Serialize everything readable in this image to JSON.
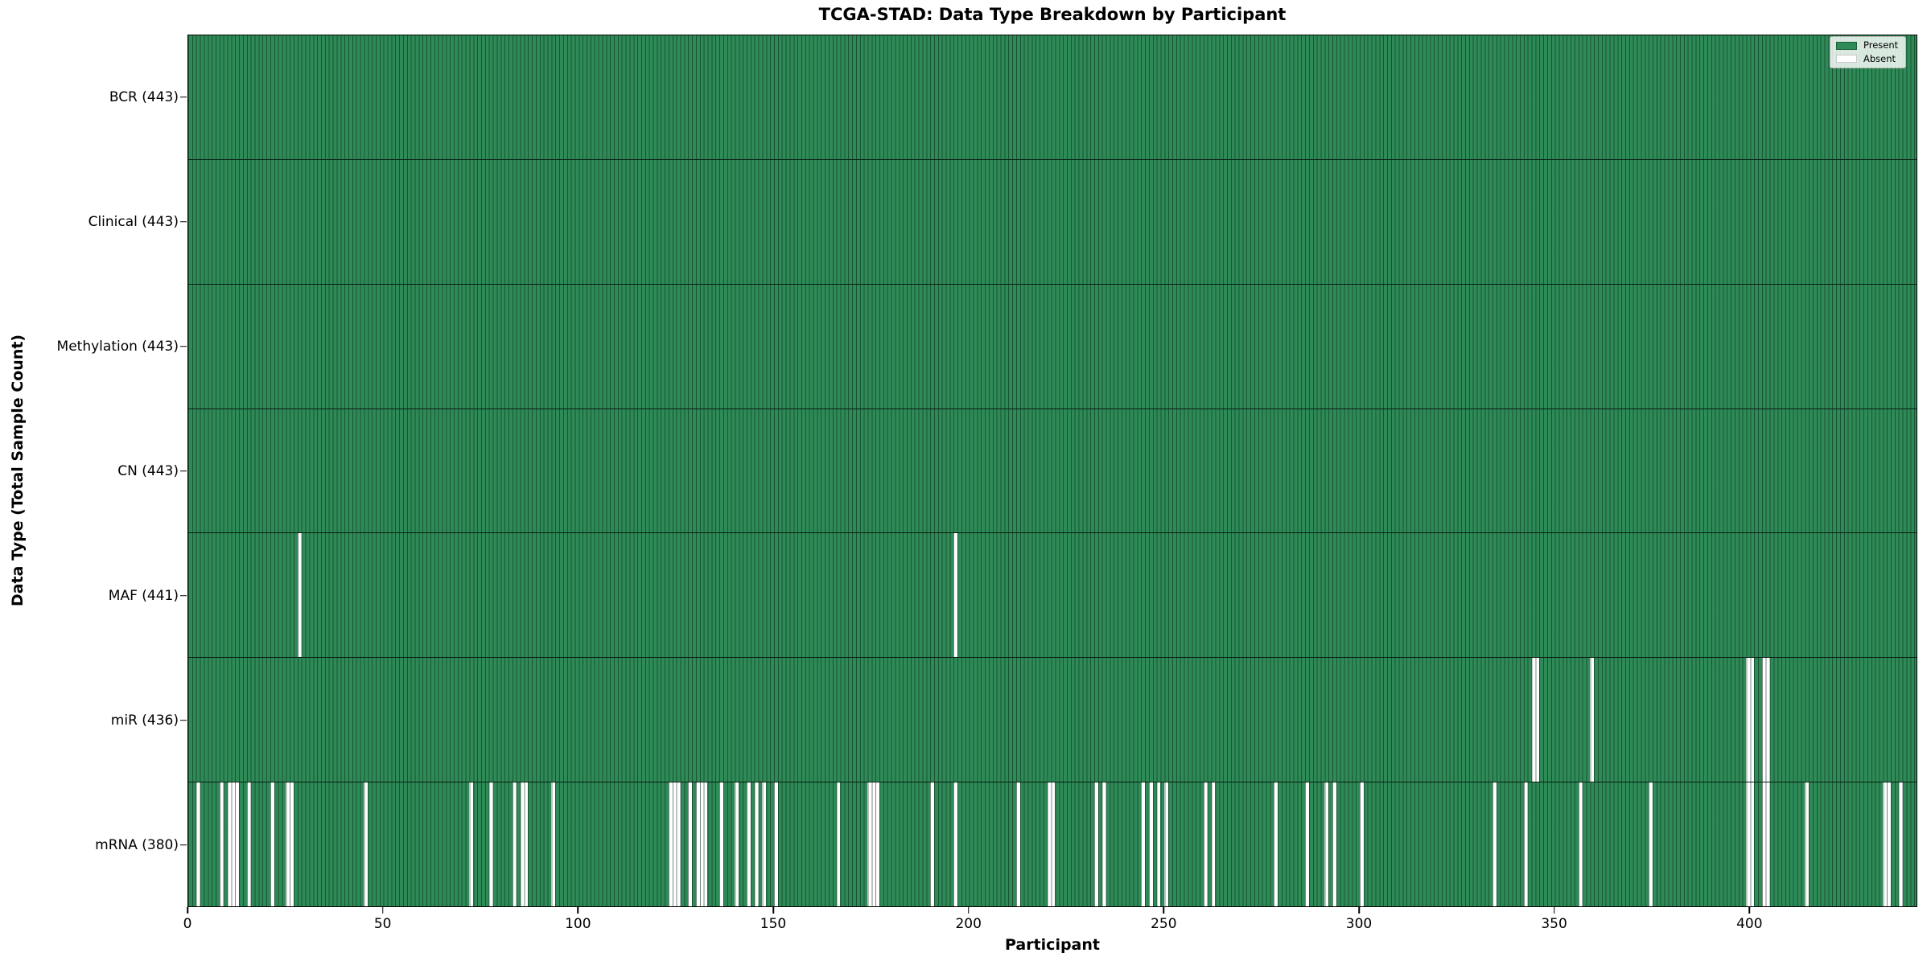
{
  "title": "TCGA-STAD: Data Type Breakdown by Participant",
  "x_axis": {
    "label": "Participant",
    "ticks": [
      0,
      50,
      100,
      150,
      200,
      250,
      300,
      350,
      400
    ]
  },
  "y_axis": {
    "label": "Data Type (Total Sample Count)"
  },
  "legend": {
    "items": [
      {
        "label": "Present",
        "color": "#2E8B57"
      },
      {
        "label": "Absent",
        "color": "#FFFFFF"
      }
    ],
    "position": "upper right"
  },
  "colors": {
    "present": "#2E8B57",
    "absent": "#FFFFFF",
    "edge": "#0A2618"
  },
  "chart_data": {
    "type": "heatmap",
    "title": "TCGA-STAD: Data Type Breakdown by Participant",
    "xlabel": "Participant",
    "ylabel": "Data Type (Total Sample Count)",
    "x_range": [
      0,
      443
    ],
    "n_participants": 443,
    "xticks": [
      0,
      50,
      100,
      150,
      200,
      250,
      300,
      350,
      400
    ],
    "grid": false,
    "legend_position": "upper right",
    "legend_entries": [
      "Present",
      "Absent"
    ],
    "encoding": "each row = data type; each of 443 participant columns is 1 (present, green) or 0 (absent, white); absent_participants lists approximate 0-based participant indices rendered white",
    "rows": [
      {
        "label": "BCR (443)",
        "data_type": "BCR",
        "present_count": 443,
        "absent_count": 0,
        "absent_participants": []
      },
      {
        "label": "Clinical (443)",
        "data_type": "Clinical",
        "present_count": 443,
        "absent_count": 0,
        "absent_participants": []
      },
      {
        "label": "Methylation (443)",
        "data_type": "Methylation",
        "present_count": 443,
        "absent_count": 0,
        "absent_participants": []
      },
      {
        "label": "CN (443)",
        "data_type": "CN",
        "present_count": 443,
        "absent_count": 0,
        "absent_participants": []
      },
      {
        "label": "MAF (441)",
        "data_type": "MAF",
        "present_count": 441,
        "absent_count": 2,
        "absent_participants": [
          28,
          196
        ]
      },
      {
        "label": "miR (436)",
        "data_type": "miR",
        "present_count": 436,
        "absent_count": 7,
        "absent_participants": [
          344,
          345,
          359,
          399,
          400,
          403,
          404
        ]
      },
      {
        "label": "mRNA (380)",
        "data_type": "mRNA",
        "present_count": 380,
        "absent_count": 63,
        "absent_participants": [
          2,
          8,
          10,
          11,
          12,
          15,
          21,
          25,
          26,
          45,
          72,
          77,
          83,
          85,
          86,
          93,
          123,
          124,
          125,
          128,
          130,
          131,
          132,
          136,
          140,
          143,
          145,
          147,
          150,
          166,
          174,
          175,
          176,
          190,
          196,
          212,
          220,
          221,
          232,
          234,
          244,
          246,
          248,
          250,
          260,
          262,
          278,
          286,
          291,
          293,
          300,
          334,
          342,
          356,
          374,
          399,
          400,
          403,
          404,
          414,
          434,
          435,
          438
        ]
      }
    ]
  }
}
